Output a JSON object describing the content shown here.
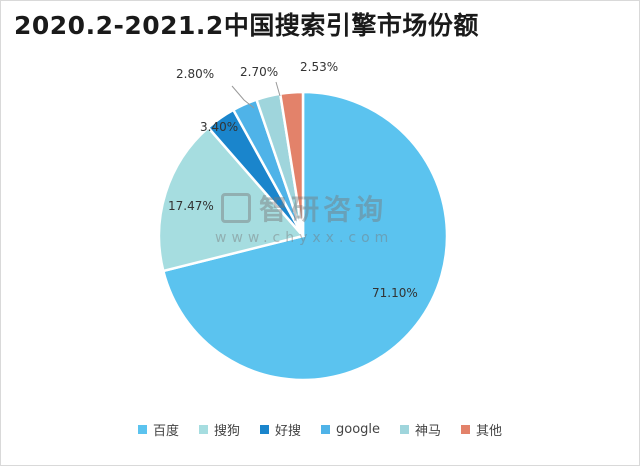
{
  "chart_data": {
    "type": "pie",
    "title": "2020.2-2021.2中国搜索引擎市场份额",
    "labels": [
      "百度",
      "搜狗",
      "好搜",
      "google",
      "神马",
      "其他"
    ],
    "values": [
      71.1,
      17.47,
      3.4,
      2.8,
      2.7,
      2.53
    ],
    "value_labels": [
      "71.10%",
      "17.47%",
      "3.40%",
      "2.80%",
      "2.70%",
      "2.53%"
    ],
    "colors": [
      "#5bc3ef",
      "#a6dde0",
      "#1a85cc",
      "#4fb3e8",
      "#9fd5dc",
      "#e3826a"
    ],
    "legend_position": "bottom"
  },
  "watermark": {
    "name": "智研咨询",
    "url": "www.chyxx.com"
  }
}
